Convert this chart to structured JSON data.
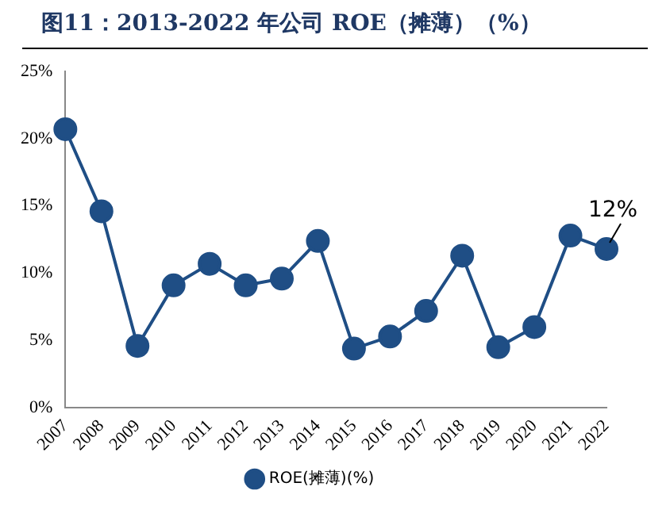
{
  "chart_data": {
    "type": "line",
    "title": "图11：2013-2022 年公司 ROE（摊薄）（%）",
    "categories": [
      "2007",
      "2008",
      "2009",
      "2010",
      "2011",
      "2012",
      "2013",
      "2014",
      "2015",
      "2016",
      "2017",
      "2018",
      "2019",
      "2020",
      "2021",
      "2022"
    ],
    "series": [
      {
        "name": "ROE(摊薄)(%)",
        "color": "#1f4e85",
        "values": [
          20.7,
          14.6,
          4.6,
          9.1,
          10.7,
          9.1,
          9.6,
          12.4,
          4.4,
          5.3,
          7.2,
          11.3,
          4.5,
          6.0,
          12.8,
          11.8
        ]
      }
    ],
    "ylim": [
      0,
      25
    ],
    "yticks": [
      {
        "value": 0,
        "label": "0%"
      },
      {
        "value": 5,
        "label": "5%"
      },
      {
        "value": 10,
        "label": "10%"
      },
      {
        "value": 15,
        "label": "15%"
      },
      {
        "value": 20,
        "label": "20%"
      },
      {
        "value": 25,
        "label": "25%"
      }
    ],
    "annotations": [
      {
        "text": "12%",
        "x": "2022",
        "y": 11.8
      }
    ],
    "legend": "bottom",
    "marker": "circle",
    "line_style": "solid",
    "grid": false
  }
}
